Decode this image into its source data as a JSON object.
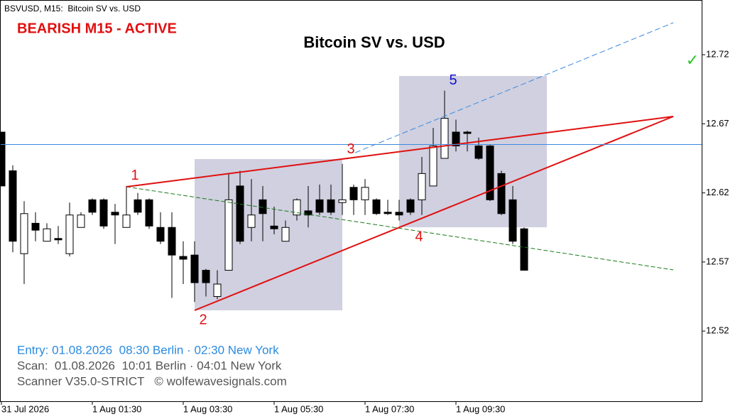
{
  "chart_data": {
    "type": "candlestick",
    "symbol_label": "BSVUSD, M15:  Bitcoin SV vs. USD",
    "status": "BEARISH M15 - ACTIVE",
    "status_color": "#e01010",
    "title": "Bitcoin SV vs. USD",
    "check": "✓",
    "entry": "Entry: 01.08.2026  08:30 Berlin · 02:30 New York",
    "scan": "Scan:  01.08.2026  10:01 Berlin · 04:01 New York",
    "scanner": "Scanner V35.0-STRICT   © wolfewavesignals.com",
    "categories": [
      "31 Jul 2026",
      null,
      null,
      null,
      null,
      null,
      null,
      null,
      "1 Aug 01:30",
      null,
      null,
      null,
      null,
      null,
      null,
      null,
      "1 Aug 03:30",
      null,
      null,
      null,
      null,
      null,
      null,
      null,
      "1 Aug 05:30",
      null,
      null,
      null,
      null,
      null,
      null,
      null,
      "1 Aug 07:30",
      null,
      null,
      null,
      null,
      null,
      null,
      null,
      "1 Aug 09:30",
      null,
      null,
      null,
      null,
      null,
      null
    ],
    "open": [
      12.664,
      12.636,
      12.576,
      12.598,
      12.585,
      12.587,
      12.576,
      12.595,
      12.615,
      12.615,
      12.606,
      12.595,
      12.615,
      12.615,
      12.595,
      12.595,
      12.574,
      12.575,
      12.564,
      12.545,
      12.564,
      12.625,
      12.595,
      12.615,
      12.596,
      12.585,
      12.604,
      12.607,
      12.615,
      12.615,
      12.613,
      12.624,
      12.615,
      12.615,
      12.606,
      12.606,
      12.615,
      12.615,
      12.625,
      12.645,
      12.664,
      12.664,
      12.654,
      12.654,
      12.634,
      12.615,
      12.594
    ],
    "high": [
      12.664,
      12.64,
      12.614,
      12.606,
      12.598,
      12.596,
      12.613,
      12.606,
      12.616,
      12.616,
      12.612,
      12.625,
      12.62,
      12.616,
      12.606,
      12.606,
      12.585,
      12.585,
      12.565,
      12.564,
      12.634,
      12.636,
      12.63,
      12.625,
      12.61,
      12.6,
      12.616,
      12.625,
      12.626,
      12.626,
      12.641,
      12.626,
      12.63,
      12.616,
      12.615,
      12.615,
      12.616,
      12.646,
      12.667,
      12.694,
      12.673,
      12.665,
      12.66,
      12.655,
      12.636,
      12.625,
      12.595
    ],
    "low": [
      12.625,
      12.577,
      12.554,
      12.585,
      12.585,
      12.583,
      12.574,
      12.595,
      12.604,
      12.594,
      12.583,
      12.595,
      12.604,
      12.594,
      12.583,
      12.544,
      12.554,
      12.541,
      12.545,
      12.543,
      12.564,
      12.583,
      12.585,
      12.585,
      12.59,
      12.585,
      12.6,
      12.595,
      12.604,
      12.604,
      12.604,
      12.604,
      12.604,
      12.604,
      12.604,
      12.6,
      12.604,
      12.604,
      12.625,
      12.645,
      12.65,
      12.65,
      12.644,
      12.614,
      12.604,
      12.583,
      12.564
    ],
    "close": [
      12.625,
      12.585,
      12.605,
      12.593,
      12.594,
      12.586,
      12.604,
      12.604,
      12.606,
      12.596,
      12.604,
      12.604,
      12.606,
      12.596,
      12.585,
      12.575,
      12.572,
      12.555,
      12.555,
      12.554,
      12.615,
      12.585,
      12.604,
      12.605,
      12.594,
      12.595,
      12.615,
      12.604,
      12.606,
      12.606,
      12.615,
      12.615,
      12.624,
      12.605,
      12.605,
      12.604,
      12.606,
      12.634,
      12.654,
      12.674,
      12.654,
      12.663,
      12.645,
      12.615,
      12.605,
      12.585,
      12.564
    ],
    "waves": [
      {
        "label": "1",
        "x": 11,
        "y": 12.625,
        "color": "#e01010"
      },
      {
        "label": "2",
        "x": 17,
        "y": 12.535,
        "color": "#e01010"
      },
      {
        "label": "3",
        "x": 30,
        "y": 12.644,
        "color": "#e01010"
      },
      {
        "label": "4",
        "x": 36,
        "y": 12.595,
        "color": "#e01010"
      },
      {
        "label": "5",
        "x": 39,
        "y": 12.694,
        "color": "#1010d0"
      }
    ],
    "price_line": 12.655,
    "ylim": [
      12.4692,
      12.7596
    ],
    "yticks": [
      12.52,
      12.57,
      12.62,
      12.67,
      12.72
    ]
  }
}
